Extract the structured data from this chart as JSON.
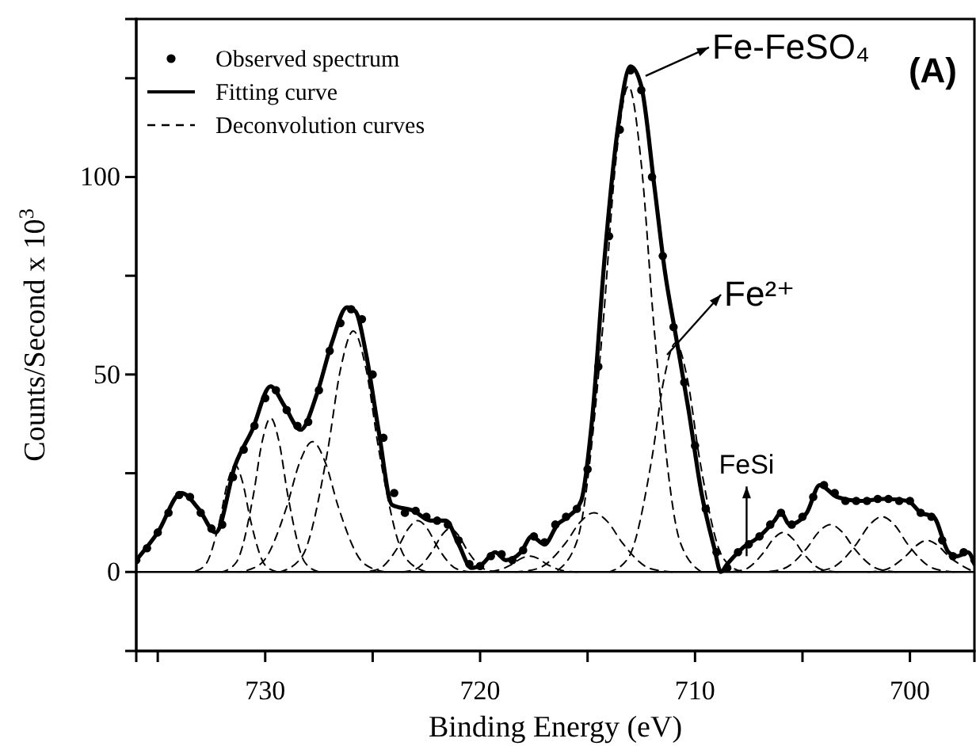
{
  "chart_data": {
    "type": "line",
    "xlabel": "Binding Energy (eV)",
    "ylabel": "Counts/Second x 10$^{3}$",
    "xlim": [
      736,
      697
    ],
    "ylim": [
      -20,
      140
    ],
    "xticks": [
      {
        "value": 735,
        "label": null
      },
      730,
      {
        "value": 725,
        "label": null
      },
      720,
      {
        "value": 715,
        "label": null
      },
      710,
      {
        "value": 705,
        "label": null
      },
      700
    ],
    "yticks": [
      0,
      {
        "value": 25,
        "label": null
      },
      50,
      {
        "value": 75,
        "label": null
      },
      100,
      {
        "value": 125,
        "label": null
      }
    ],
    "legend": "top left",
    "ref_lines": [
      {
        "axis": "y",
        "value": 0
      }
    ],
    "annotations": [
      {
        "text": "Fe-FeSO₄",
        "x": 712.3,
        "y": 125.6
      },
      {
        "text": "Fe²⁺",
        "x": 711.3,
        "y": 55
      },
      {
        "text": "FeSi",
        "x": 707.6,
        "y": 4
      },
      "(A)"
    ],
    "series": [
      {
        "name": "Observed spectrum",
        "type": "scatter",
        "marker": "circle",
        "color": "#000000",
        "x": [
          736,
          735.5,
          735,
          734.5,
          734,
          733.5,
          733,
          732.5,
          732,
          731.5,
          731,
          730.5,
          730,
          729.5,
          729,
          728.5,
          728,
          727.5,
          727,
          726.5,
          726,
          725.5,
          725,
          724.5,
          724,
          723.5,
          723,
          722.5,
          722,
          721.5,
          721,
          720.5,
          720,
          719.5,
          719,
          718.5,
          718,
          717.5,
          717,
          716.5,
          716,
          715.5,
          715,
          714.5,
          714,
          713.5,
          713,
          712.5,
          712,
          711.5,
          711,
          710.5,
          710,
          709.5,
          709,
          708.5,
          708,
          707.5,
          707,
          706.5,
          706,
          705.5,
          705,
          704.5,
          704,
          703.5,
          703,
          702.5,
          702,
          701.5,
          701,
          700.5,
          700,
          699.5,
          699,
          698.5,
          698,
          697.5,
          697
        ],
        "values": [
          3,
          6,
          10,
          15,
          19.5,
          19,
          15,
          11,
          12,
          24,
          31,
          37,
          44,
          46,
          41,
          37,
          38,
          46,
          56,
          63,
          66.5,
          64,
          50,
          34,
          20,
          15,
          15.5,
          14,
          13,
          12,
          8,
          2,
          1.5,
          4,
          4.5,
          3,
          5.5,
          9,
          7.5,
          12,
          14,
          16,
          26,
          52,
          85,
          112,
          127,
          122,
          100,
          80,
          62,
          48,
          32,
          16,
          5,
          1,
          5,
          7,
          9,
          12,
          15,
          12,
          14,
          19,
          22,
          20,
          18,
          18,
          18,
          18.5,
          18.5,
          18,
          18,
          15,
          14,
          8,
          4,
          5,
          3
        ]
      },
      {
        "name": "Fitting curve",
        "line_style": "solid",
        "color": "#000000",
        "x": [
          736,
          735,
          733.9,
          733.1,
          732.3,
          731.4,
          730.6,
          729.75,
          729.1,
          728.35,
          727.6,
          726.9,
          726.2,
          725.8,
          725.3,
          724.7,
          724.1,
          723.1,
          722.3,
          721.6,
          721,
          720.4,
          719.9,
          719.3,
          718.8,
          718.1,
          717.6,
          717,
          716.4,
          715.9,
          715.3,
          714.8,
          714.2,
          713.6,
          713,
          712.5,
          711.9,
          711.4,
          710.9,
          710.3,
          709.7,
          709.1,
          708.8,
          708.5,
          707.8,
          707,
          706.3,
          706,
          705.6,
          704.8,
          704.2,
          703.4,
          702.3,
          701.2,
          700.1,
          699.5,
          698.9,
          698.2,
          697.8,
          697.3,
          697
        ],
        "values": [
          3,
          10,
          20,
          16,
          10,
          27,
          36,
          47,
          42,
          36,
          45,
          58,
          67,
          66,
          55,
          35,
          17,
          15.5,
          13,
          13,
          7,
          1,
          2,
          5,
          3,
          5,
          9,
          7,
          12,
          14,
          18,
          38,
          80,
          112,
          128,
          123,
          98,
          76,
          60,
          41,
          20,
          6,
          0,
          2,
          6,
          9,
          13,
          15,
          12,
          15,
          22,
          19,
          18,
          18.5,
          18,
          15,
          14,
          5,
          4,
          5,
          2
        ]
      },
      {
        "name": "Deconvolution curves",
        "line_style": "dashed",
        "color": "#000000",
        "x": [
          733.36,
          732.8,
          732.1,
          731.75,
          731.4,
          731.05,
          730.7,
          730.0,
          729.44
        ],
        "values": [
          0,
          1.7,
          13.5,
          22.7,
          27,
          22.7,
          13.5,
          1.7,
          0
        ]
      },
      {
        "line_style": "dashed",
        "color": "#000000",
        "x": [
          732.0,
          731.35,
          730.55,
          730.15,
          729.75,
          729.35,
          728.95,
          728.15,
          727.5
        ],
        "values": [
          0,
          2.4,
          19.5,
          32.8,
          39,
          32.8,
          19.5,
          2.4,
          0
        ]
      },
      {
        "line_style": "dashed",
        "color": "#000000",
        "x": [
          731.2,
          730.2,
          729.0,
          728.4,
          727.8,
          727.2,
          726.6,
          725.4,
          724.4
        ],
        "values": [
          0,
          2.1,
          16.5,
          27.7,
          33,
          27.7,
          16.5,
          2.1,
          0
        ]
      },
      {
        "line_style": "dashed",
        "color": "#000000",
        "x": [
          729.3,
          728.3,
          727.1,
          726.5,
          725.9,
          725.3,
          724.7,
          723.5,
          722.5
        ],
        "values": [
          0,
          3.8,
          30.5,
          51.2,
          61,
          51.2,
          30.5,
          3.8,
          0
        ]
      },
      {
        "line_style": "dashed",
        "color": "#000000",
        "x": [
          725.4,
          724.7,
          723.8,
          723.35,
          722.9,
          722.45,
          722.0,
          721.1,
          720.4
        ],
        "values": [
          0,
          0.8,
          6.5,
          10.9,
          13,
          10.9,
          6.5,
          0.8,
          0
        ]
      },
      {
        "line_style": "dashed",
        "color": "#000000",
        "x": [
          723.64,
          723.0,
          722.2,
          721.8,
          721.4,
          721.0,
          720.6,
          719.8,
          719.16
        ],
        "values": [
          0,
          0.7,
          5.5,
          9.2,
          11,
          9.2,
          5.5,
          0.7,
          0
        ]
      },
      {
        "line_style": "dashed",
        "color": "#000000",
        "x": [
          719.94,
          719.3,
          718.5,
          718.1,
          717.7,
          717.3,
          716.9,
          716.1,
          715.46
        ],
        "values": [
          0,
          0.3,
          2,
          3.4,
          4,
          3.4,
          2,
          0.3,
          0
        ]
      },
      {
        "line_style": "dashed",
        "color": "#000000",
        "x": [
          718.34,
          717.3,
          716.0,
          715.35,
          714.7,
          714.05,
          713.4,
          712.1,
          711.06
        ],
        "values": [
          0,
          0.9,
          7.5,
          12.6,
          15,
          12.6,
          7.5,
          0.9,
          0
        ]
      },
      {
        "line_style": "dashed",
        "color": "#000000",
        "x": [
          716.5,
          715.5,
          714.3,
          713.7,
          713.1,
          712.5,
          711.9,
          710.7,
          709.7
        ],
        "values": [
          0,
          7.7,
          61.5,
          103.3,
          123,
          103.3,
          61.5,
          7.7,
          0
        ]
      },
      {
        "line_style": "dashed",
        "color": "#000000",
        "x": [
          713.98,
          713.1,
          712.0,
          711.45,
          710.9,
          710.35,
          709.8,
          708.7,
          707.82
        ],
        "values": [
          0,
          3.6,
          29,
          48.7,
          58,
          48.7,
          29,
          3.6,
          0
        ]
      },
      {
        "line_style": "dashed",
        "color": "#000000",
        "x": [
          708.42,
          707.7,
          706.8,
          706.35,
          705.9,
          705.45,
          705.0,
          704.1,
          703.38
        ],
        "values": [
          0,
          0.6,
          5,
          8.4,
          10,
          8.4,
          5,
          0.6,
          0
        ]
      },
      {
        "line_style": "dashed",
        "color": "#000000",
        "x": [
          706.78,
          705.9,
          704.8,
          704.25,
          703.7,
          703.15,
          702.6,
          701.5,
          700.62
        ],
        "values": [
          0,
          0.8,
          6,
          10.1,
          12,
          10.1,
          6,
          0.8,
          0
        ]
      },
      {
        "line_style": "dashed",
        "color": "#000000",
        "x": [
          704.66,
          703.7,
          702.5,
          701.9,
          701.3,
          700.7,
          700.1,
          698.9,
          697.94
        ],
        "values": [
          0,
          0.9,
          7,
          11.8,
          14,
          11.8,
          7,
          0.9,
          0
        ]
      },
      {
        "line_style": "dashed",
        "color": "#000000",
        "x": [
          702.0,
          701.2,
          700.2,
          699.7,
          699.2,
          698.7,
          698.2,
          697.2
        ],
        "values": [
          0,
          0.5,
          4,
          6.7,
          8,
          6.7,
          4,
          0.5
        ]
      }
    ]
  }
}
